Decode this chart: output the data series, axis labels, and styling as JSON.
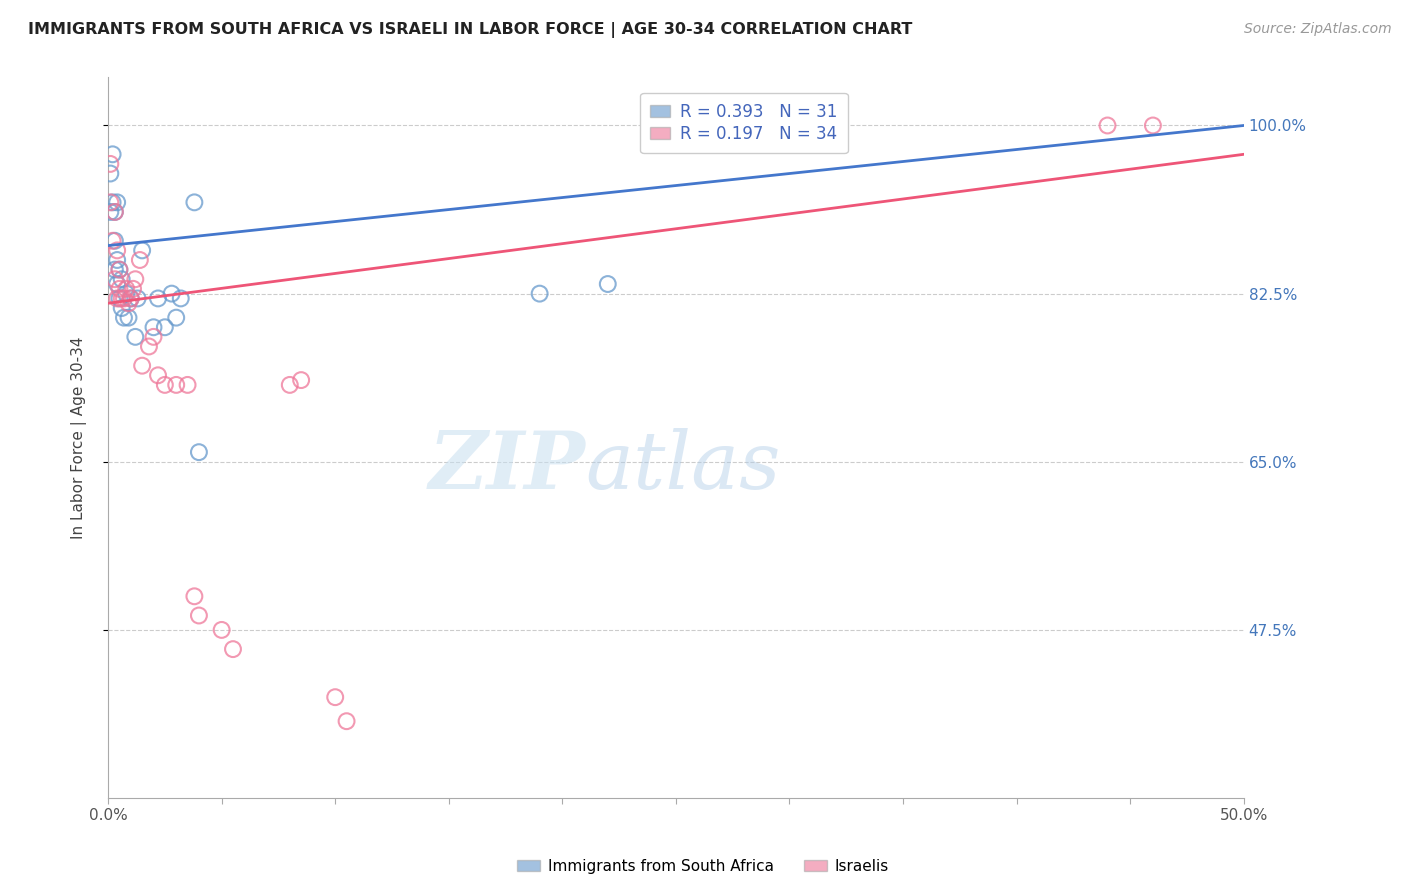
{
  "title": "IMMIGRANTS FROM SOUTH AFRICA VS ISRAELI IN LABOR FORCE | AGE 30-34 CORRELATION CHART",
  "source": "Source: ZipAtlas.com",
  "ylabel": "In Labor Force | Age 30-34",
  "xlim": [
    0.0,
    0.5
  ],
  "ylim": [
    0.3,
    1.05
  ],
  "ytick_positions": [
    0.475,
    0.65,
    0.825,
    1.0
  ],
  "yticklabels": [
    "47.5%",
    "65.0%",
    "82.5%",
    "100.0%"
  ],
  "grid_color": "#cccccc",
  "blue_color": "#6699cc",
  "pink_color": "#ee7799",
  "legend_blue_label": "Immigrants from South Africa",
  "legend_pink_label": "Israelis",
  "R_blue": 0.393,
  "N_blue": 31,
  "R_pink": 0.197,
  "N_pink": 34,
  "blue_x": [
    0.001,
    0.001,
    0.002,
    0.002,
    0.003,
    0.003,
    0.003,
    0.004,
    0.004,
    0.004,
    0.005,
    0.005,
    0.006,
    0.006,
    0.007,
    0.008,
    0.009,
    0.01,
    0.012,
    0.013,
    0.015,
    0.02,
    0.022,
    0.025,
    0.028,
    0.03,
    0.032,
    0.038,
    0.04,
    0.19,
    0.22
  ],
  "blue_y": [
    0.91,
    0.95,
    0.92,
    0.97,
    0.85,
    0.88,
    0.91,
    0.835,
    0.86,
    0.92,
    0.82,
    0.85,
    0.81,
    0.84,
    0.8,
    0.825,
    0.8,
    0.82,
    0.78,
    0.82,
    0.87,
    0.79,
    0.82,
    0.79,
    0.825,
    0.8,
    0.82,
    0.92,
    0.66,
    0.825,
    0.835
  ],
  "pink_x": [
    0.001,
    0.001,
    0.002,
    0.003,
    0.003,
    0.004,
    0.004,
    0.005,
    0.005,
    0.006,
    0.007,
    0.008,
    0.009,
    0.01,
    0.011,
    0.012,
    0.014,
    0.015,
    0.018,
    0.02,
    0.022,
    0.025,
    0.03,
    0.035,
    0.038,
    0.04,
    0.05,
    0.055,
    0.08,
    0.085,
    0.1,
    0.105,
    0.44,
    0.46
  ],
  "pink_y": [
    0.92,
    0.96,
    0.88,
    0.91,
    0.84,
    0.87,
    0.82,
    0.85,
    0.83,
    0.82,
    0.82,
    0.83,
    0.815,
    0.82,
    0.83,
    0.84,
    0.86,
    0.75,
    0.77,
    0.78,
    0.74,
    0.73,
    0.73,
    0.73,
    0.51,
    0.49,
    0.475,
    0.455,
    0.73,
    0.735,
    0.405,
    0.38,
    1.0,
    1.0
  ]
}
